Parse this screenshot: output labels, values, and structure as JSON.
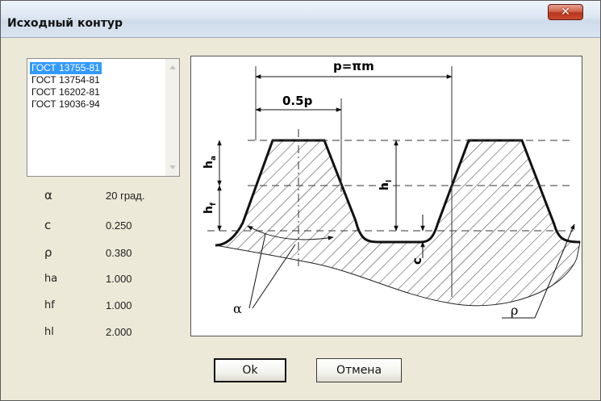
{
  "window": {
    "title": "Исходный контур",
    "close_glyph": "✕"
  },
  "standards": [
    "ГОСТ 13755-81",
    "ГОСТ 13754-81",
    "ГОСТ 16202-81",
    "ГОСТ 19036-94"
  ],
  "selected_index": 0,
  "params": [
    {
      "symbol": "α",
      "value": "20 град."
    },
    {
      "symbol": "c",
      "value": "0.250"
    },
    {
      "symbol": "ρ",
      "value": "0.380"
    },
    {
      "symbol": "ha",
      "value": "1.000"
    },
    {
      "symbol": "hf",
      "value": "1.000"
    },
    {
      "symbol": "hl",
      "value": "2.000"
    }
  ],
  "diagram": {
    "pitch_label": "p=πm",
    "half_pitch_label": "0.5p",
    "ha_label": "h",
    "ha_sub": "a",
    "hf_label": "h",
    "hf_sub": "f",
    "hl_label": "h",
    "hl_sub": "l",
    "c_label": "c",
    "alpha_label": "α",
    "rho_label": "ρ"
  },
  "buttons": {
    "ok": "Ok",
    "cancel": "Отмена"
  }
}
